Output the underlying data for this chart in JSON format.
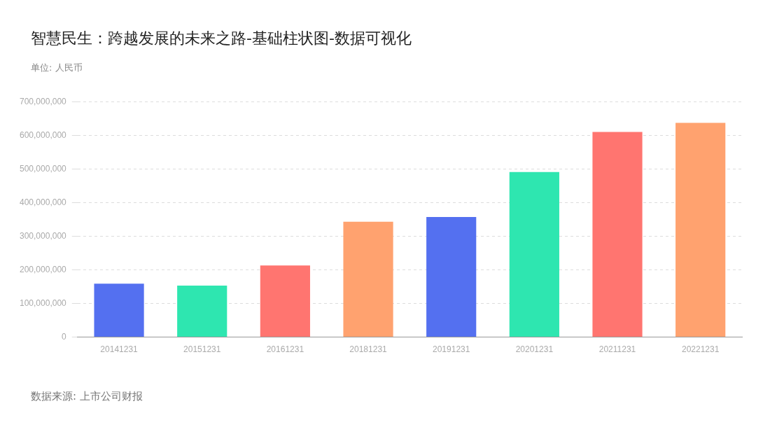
{
  "chart_data": {
    "type": "bar",
    "title": "智慧民生：跨越发展的未来之路-基础柱状图-数据可视化",
    "subtitle": "单位: 人民币",
    "categories": [
      "20141231",
      "20151231",
      "20161231",
      "20181231",
      "20191231",
      "20201231",
      "20211231",
      "20221231"
    ],
    "values": [
      159000000,
      153000000,
      213000000,
      343000000,
      357000000,
      491000000,
      610000000,
      637000000
    ],
    "colors": [
      "#5470f0",
      "#2ee6b0",
      "#ff7570",
      "#ffa26f",
      "#5470f0",
      "#2ee6b0",
      "#ff7570",
      "#ffa26f"
    ],
    "ylim": [
      0,
      700000000
    ],
    "yticks": [
      0,
      {
        "value": 100000000,
        "label": "100,000,000"
      },
      {
        "value": 200000000,
        "label": "200,000,000"
      },
      {
        "value": 300000000,
        "label": "300,000,000"
      },
      {
        "value": 400000000,
        "label": "400,000,000"
      },
      {
        "value": 500000000,
        "label": "500,000,000"
      },
      {
        "value": 600000000,
        "label": "600,000,000"
      },
      {
        "value": 700000000,
        "label": "700,000,000"
      }
    ],
    "grid": "y",
    "legend": false,
    "annotations": [
      "数据来源: 上市公司财报"
    ]
  }
}
